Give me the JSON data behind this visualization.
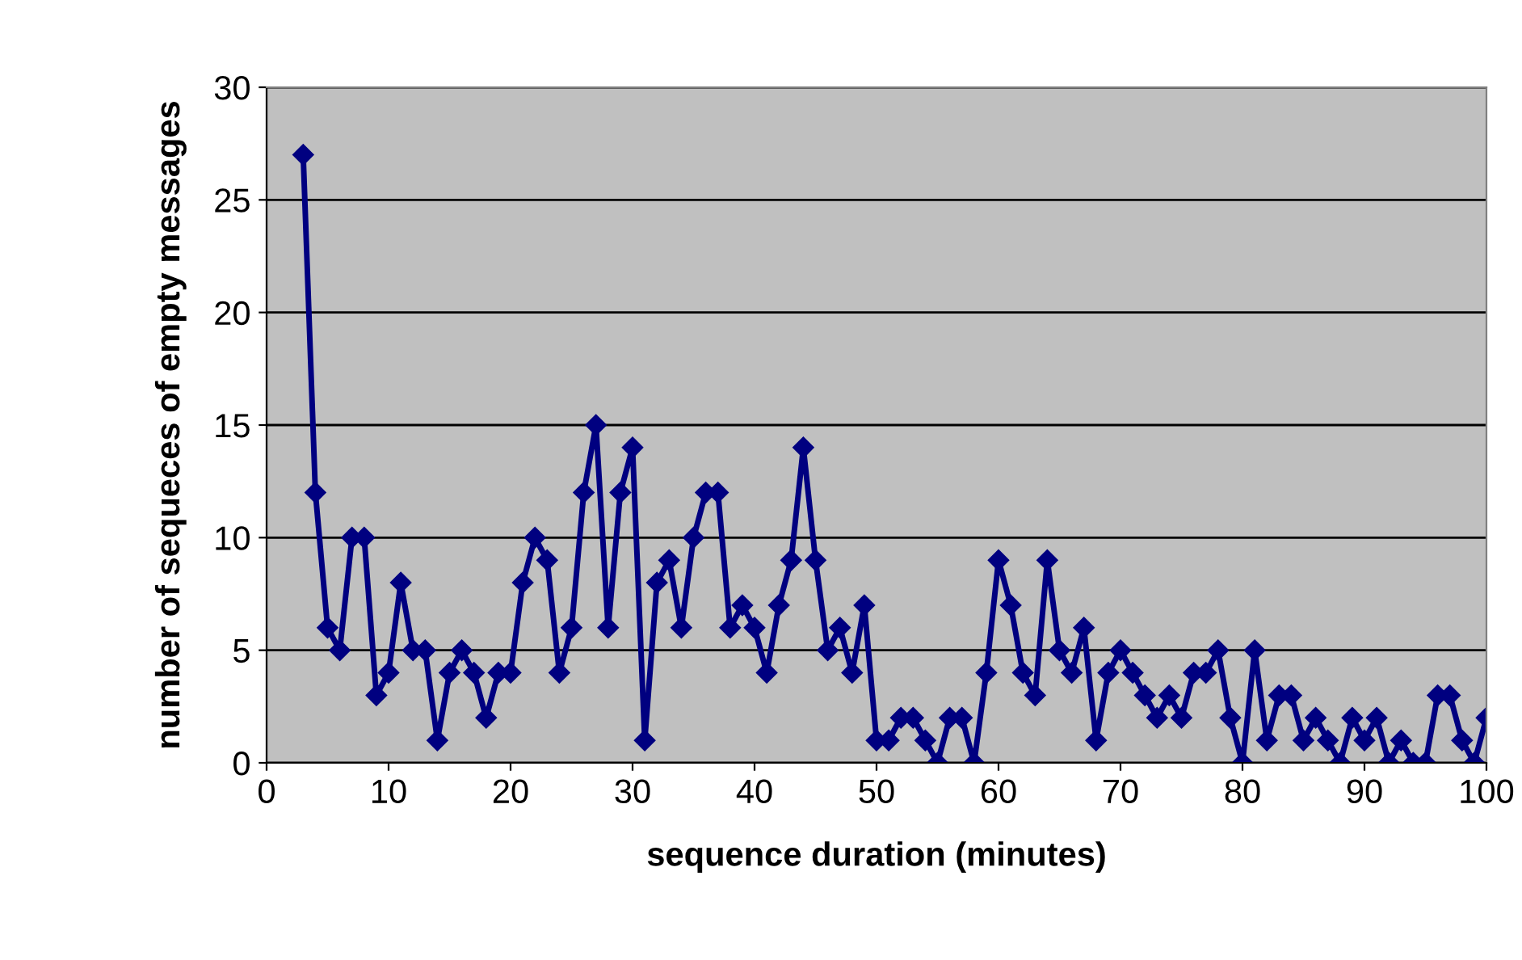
{
  "chart_data": {
    "type": "line",
    "xlabel": "sequence duration (minutes)",
    "ylabel": "number of sequeces of empty messages",
    "x": [
      3,
      4,
      5,
      6,
      7,
      8,
      9,
      10,
      11,
      12,
      13,
      14,
      15,
      16,
      17,
      18,
      19,
      20,
      21,
      22,
      23,
      24,
      25,
      26,
      27,
      28,
      29,
      30,
      31,
      32,
      33,
      34,
      35,
      36,
      37,
      38,
      39,
      40,
      41,
      42,
      43,
      44,
      45,
      46,
      47,
      48,
      49,
      50,
      51,
      52,
      53,
      54,
      55,
      56,
      57,
      58,
      59,
      60,
      61,
      62,
      63,
      64,
      65,
      66,
      67,
      68,
      69,
      70,
      71,
      72,
      73,
      74,
      75,
      76,
      77,
      78,
      79,
      80,
      81,
      82,
      83,
      84,
      85,
      86,
      87,
      88,
      89,
      90,
      91,
      92,
      93,
      94,
      95,
      96,
      97,
      98,
      99,
      100
    ],
    "series": [
      {
        "color": "#000080",
        "values": [
          27,
          12,
          6,
          5,
          10,
          10,
          3,
          4,
          8,
          5,
          5,
          1,
          4,
          5,
          4,
          2,
          4,
          4,
          8,
          10,
          9,
          4,
          6,
          12,
          15,
          6,
          12,
          14,
          1,
          8,
          9,
          6,
          10,
          12,
          12,
          6,
          7,
          6,
          4,
          7,
          9,
          14,
          9,
          5,
          6,
          4,
          7,
          1,
          1,
          2,
          2,
          1,
          0,
          2,
          2,
          0,
          4,
          9,
          7,
          4,
          3,
          9,
          5,
          4,
          6,
          1,
          4,
          5,
          4,
          3,
          2,
          3,
          2,
          4,
          4,
          5,
          2,
          0,
          5,
          1,
          3,
          3,
          1,
          2,
          1,
          0,
          2,
          1,
          2,
          0,
          1,
          0,
          0,
          3,
          3,
          1,
          0,
          2
        ]
      }
    ],
    "xlim": [
      0,
      100
    ],
    "xticks": [
      0,
      10,
      20,
      30,
      40,
      50,
      60,
      70,
      80,
      90,
      100
    ],
    "ylim": [
      0,
      30
    ],
    "yticks": [
      0,
      5,
      10,
      15,
      20,
      25,
      30
    ],
    "grid": "y",
    "marker": "diamond",
    "line_style": "solid",
    "legend": false
  }
}
